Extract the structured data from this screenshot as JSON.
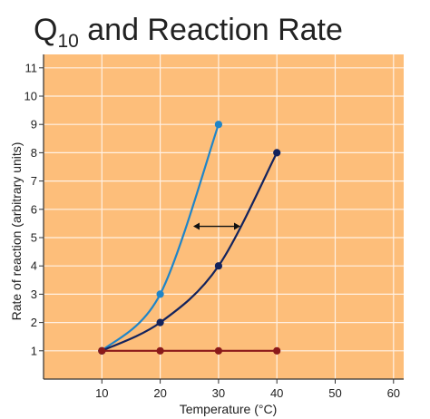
{
  "colors": {
    "plot_background": "#FDBE7A",
    "grid": "#FFF1E4",
    "axis": "#303030",
    "text": "#202020",
    "q10_3": "#1F85C8",
    "q10_2": "#13235D",
    "q10_1": "#8B1A1A",
    "arrow": "#111111"
  },
  "chart_data": {
    "type": "line",
    "title_main": "Q",
    "title_subscript": "10",
    "title_rest": " and Reaction Rate",
    "xlabel": "Temperature (°C)",
    "ylabel": "Rate of reaction (arbitrary units)",
    "xlim": [
      0,
      62
    ],
    "ylim": [
      0,
      11.5
    ],
    "xticks": [
      10,
      20,
      30,
      40,
      50,
      60
    ],
    "yticks": [
      1,
      2,
      3,
      4,
      5,
      6,
      7,
      8,
      9,
      10,
      11
    ],
    "grid": true,
    "series": [
      {
        "x": [
          10,
          20,
          30
        ],
        "y": [
          1,
          3,
          9
        ],
        "color": "#1F85C8"
      },
      {
        "x": [
          10,
          20,
          30,
          40
        ],
        "y": [
          1,
          2,
          4,
          8
        ],
        "color": "#13235D"
      },
      {
        "x": [
          10,
          20,
          30,
          40
        ],
        "y": [
          1,
          1,
          1,
          1
        ],
        "color": "#8B1A1A"
      }
    ],
    "annotations": [
      {
        "type": "double-arrow",
        "y": 5.4
      }
    ]
  }
}
